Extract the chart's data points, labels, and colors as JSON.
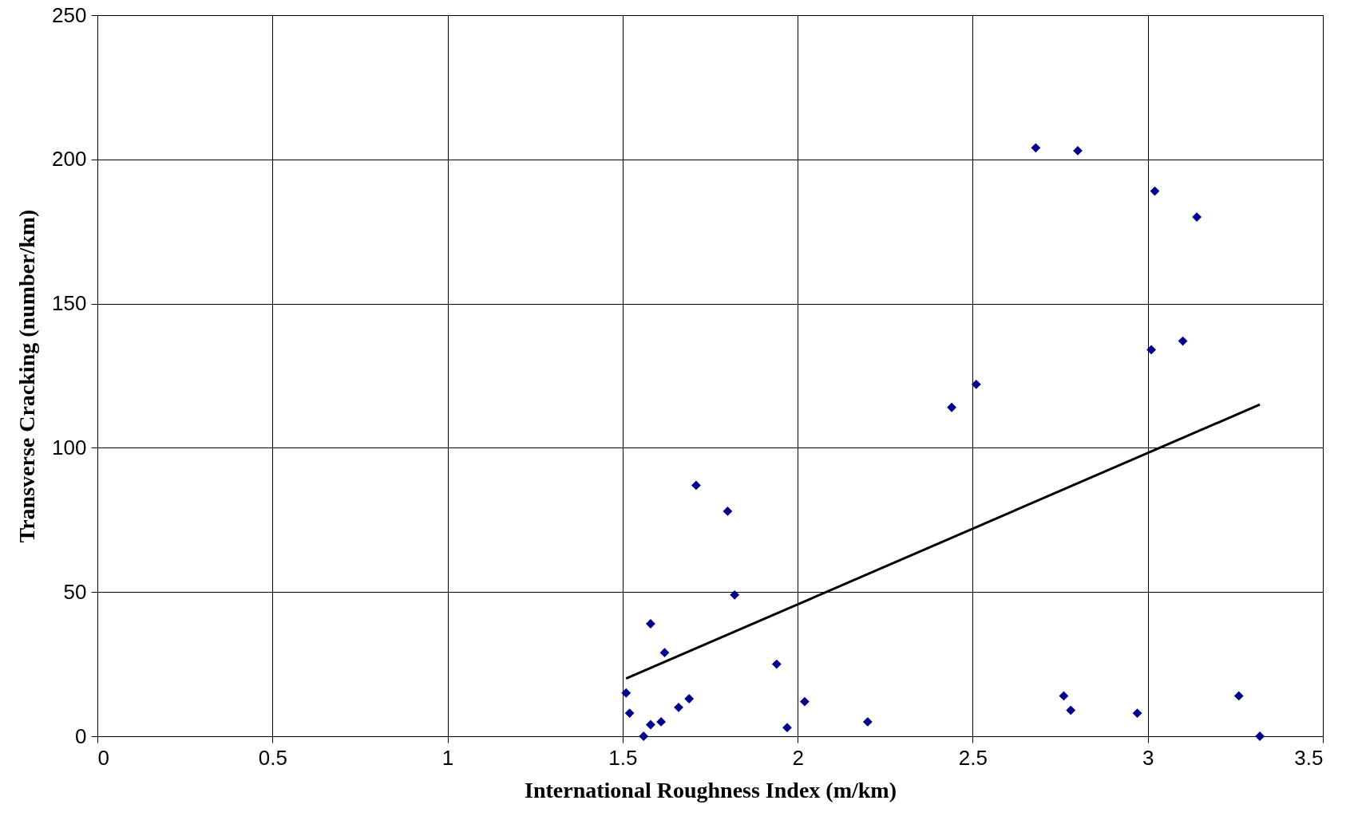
{
  "chart_data": {
    "type": "scatter",
    "xlabel": "International Roughness Index (m/km)",
    "ylabel": "Transverse Cracking (number/km)",
    "xlim": [
      0,
      3.5
    ],
    "xticks": [
      0,
      0.5,
      1,
      1.5,
      2,
      2.5,
      3,
      3.5
    ],
    "ylim": [
      0,
      250
    ],
    "yticks": [
      0,
      50,
      100,
      150,
      200,
      250
    ],
    "grid": true,
    "series": [
      {
        "type": "scatter",
        "marker": "diamond",
        "color": "#00008b",
        "x": [
          1.51,
          1.52,
          1.56,
          1.58,
          1.58,
          1.61,
          1.62,
          1.66,
          1.69,
          1.71,
          1.8,
          1.82,
          1.94,
          1.97,
          2.02,
          2.2,
          2.44,
          2.51,
          2.68,
          2.76,
          2.78,
          2.8,
          2.97,
          3.01,
          3.02,
          3.1,
          3.14,
          3.26,
          3.32
        ],
        "values": [
          15,
          8,
          0,
          39,
          4,
          5,
          29,
          10,
          13,
          87,
          78,
          49,
          25,
          3,
          12,
          5,
          114,
          122,
          204,
          14,
          9,
          203,
          8,
          134,
          189,
          137,
          180,
          14,
          0
        ]
      },
      {
        "type": "line",
        "color": "#000000",
        "x": [
          1.51,
          3.32
        ],
        "values": [
          20,
          115
        ]
      }
    ]
  }
}
